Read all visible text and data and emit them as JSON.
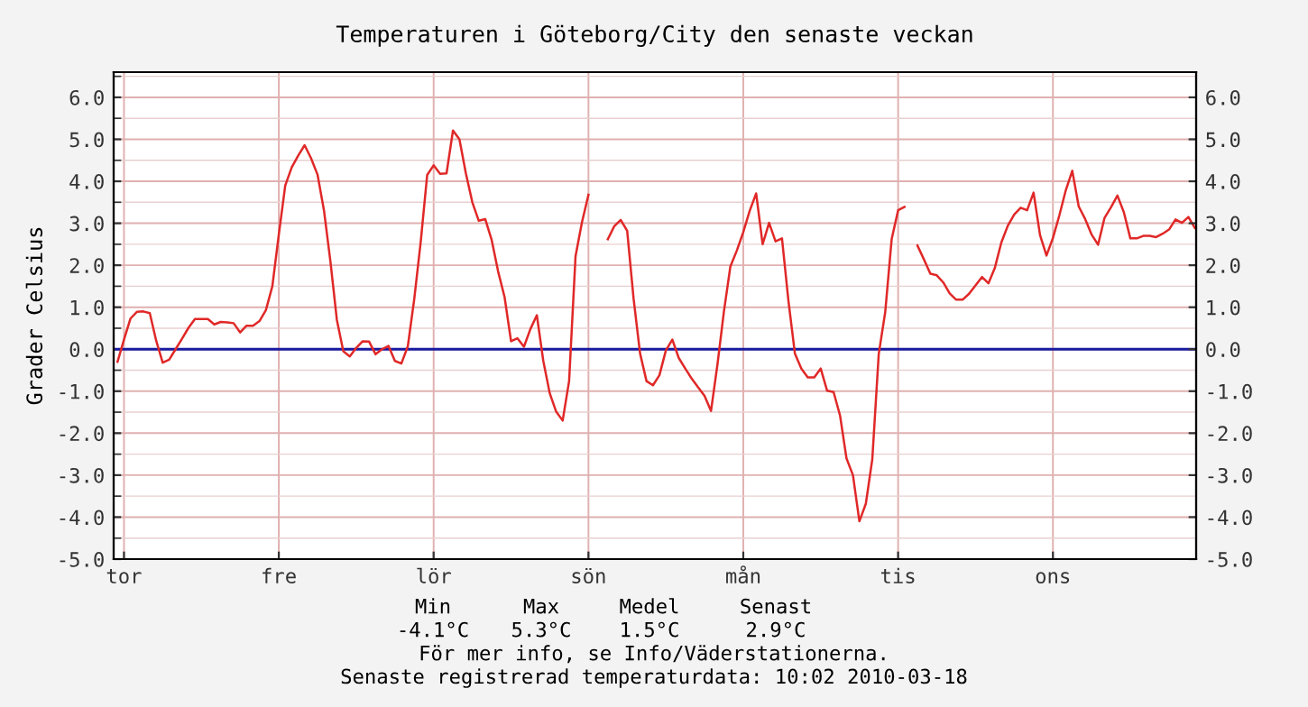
{
  "chart_data": {
    "type": "line",
    "title": "Temperaturen i Göteborg/City den senaste veckan",
    "ylabel": "Grader Celsius",
    "categories": [
      null,
      "tor",
      null,
      null,
      null,
      null,
      null,
      null,
      null,
      null,
      null,
      null,
      null,
      null,
      null,
      null,
      null,
      null,
      null,
      null,
      null,
      null,
      null,
      null,
      null,
      "fre",
      null,
      null,
      null,
      null,
      null,
      null,
      null,
      null,
      null,
      null,
      null,
      null,
      null,
      null,
      null,
      null,
      null,
      null,
      null,
      null,
      null,
      null,
      null,
      "lör",
      null,
      null,
      null,
      null,
      null,
      null,
      null,
      null,
      null,
      null,
      null,
      null,
      null,
      null,
      null,
      null,
      null,
      null,
      null,
      null,
      null,
      null,
      null,
      "sön",
      null,
      null,
      null,
      null,
      null,
      null,
      null,
      null,
      null,
      null,
      null,
      null,
      null,
      null,
      null,
      null,
      null,
      null,
      null,
      null,
      null,
      null,
      null,
      "mån",
      null,
      null,
      null,
      null,
      null,
      null,
      null,
      null,
      null,
      null,
      null,
      null,
      null,
      null,
      null,
      null,
      null,
      null,
      null,
      null,
      null,
      null,
      null,
      "tis",
      null,
      null,
      null,
      null,
      null,
      null,
      null,
      null,
      null,
      null,
      null,
      null,
      null,
      null,
      null,
      null,
      null,
      null,
      null,
      null,
      null,
      null,
      null,
      "ons",
      null,
      null,
      null,
      null,
      null,
      null,
      null,
      null,
      null,
      null,
      null,
      null,
      null,
      null,
      null,
      null,
      null,
      null,
      null,
      null,
      null,
      null
    ],
    "series": [
      {
        "color": "#e02828",
        "values": [
          -0.3,
          0.23,
          0.73,
          0.89,
          0.9,
          0.86,
          0.2,
          -0.32,
          -0.25,
          0.0,
          0.25,
          0.51,
          0.72,
          0.72,
          0.72,
          0.59,
          0.65,
          0.64,
          0.62,
          0.4,
          0.56,
          0.56,
          0.67,
          0.93,
          1.5,
          2.73,
          3.9,
          4.33,
          4.61,
          4.86,
          4.55,
          4.16,
          3.31,
          2.09,
          0.7,
          -0.05,
          -0.17,
          0.03,
          0.19,
          0.18,
          -0.12,
          0.0,
          0.08,
          -0.28,
          -0.34,
          0.07,
          1.2,
          2.56,
          4.15,
          4.38,
          4.18,
          4.19,
          5.21,
          5.0,
          4.19,
          3.5,
          3.06,
          3.1,
          2.6,
          1.85,
          1.24,
          0.19,
          0.26,
          0.06,
          0.48,
          0.81,
          -0.28,
          -1.05,
          -1.49,
          -1.7,
          -0.76,
          2.22,
          3.03,
          3.68,
          null,
          null,
          2.62,
          2.93,
          3.08,
          2.82,
          1.2,
          -0.1,
          -0.76,
          -0.86,
          -0.62,
          -0.03,
          0.23,
          -0.21,
          -0.46,
          -0.7,
          -0.91,
          -1.11,
          -1.47,
          -0.36,
          0.9,
          1.97,
          2.35,
          2.79,
          3.3,
          3.71,
          2.5,
          3.01,
          2.57,
          2.64,
          1.15,
          -0.1,
          -0.46,
          -0.67,
          -0.67,
          -0.46,
          -0.99,
          -1.02,
          -1.58,
          -2.6,
          -3.0,
          -4.1,
          -3.68,
          -2.62,
          -0.11,
          0.88,
          2.62,
          3.31,
          3.39,
          null,
          2.47,
          2.14,
          1.8,
          1.76,
          1.59,
          1.33,
          1.18,
          1.18,
          1.32,
          1.52,
          1.72,
          1.57,
          1.94,
          2.54,
          2.94,
          3.21,
          3.37,
          3.31,
          3.73,
          2.72,
          2.23,
          2.65,
          3.19,
          3.79,
          4.25,
          3.4,
          3.1,
          2.73,
          2.49,
          3.13,
          3.38,
          3.66,
          3.26,
          2.64,
          2.64,
          2.7,
          2.7,
          2.67,
          2.75,
          2.85,
          3.09,
          3.01,
          3.15,
          2.89
        ]
      }
    ],
    "ylim": [
      -5,
      6.6
    ],
    "yticks": [
      {
        "value": -5,
        "label": "-5.0"
      },
      {
        "value": -4,
        "label": "-4.0"
      },
      {
        "value": -3,
        "label": "-3.0"
      },
      {
        "value": -2,
        "label": "-2.0"
      },
      {
        "value": -1,
        "label": "-1.0"
      },
      {
        "value": 0,
        "label": "0.0"
      },
      {
        "value": 1,
        "label": "1.0"
      },
      {
        "value": 2,
        "label": "2.0"
      },
      {
        "value": 3,
        "label": "3.0"
      },
      {
        "value": 4,
        "label": "4.0"
      },
      {
        "value": 5,
        "label": "5.0"
      },
      {
        "value": 6,
        "label": "6.0"
      }
    ],
    "y2lim": [
      -5,
      6.6
    ],
    "y2ticks": [
      {
        "value": -5,
        "label": "-5.0"
      },
      {
        "value": -4,
        "label": "-4.0"
      },
      {
        "value": -3,
        "label": "-3.0"
      },
      {
        "value": -2,
        "label": "-2.0"
      },
      {
        "value": -1,
        "label": "-1.0"
      },
      {
        "value": 0,
        "label": "0.0"
      },
      {
        "value": 1,
        "label": "1.0"
      },
      {
        "value": 2,
        "label": "2.0"
      },
      {
        "value": 3,
        "label": "3.0"
      },
      {
        "value": 4,
        "label": "4.0"
      },
      {
        "value": 5,
        "label": "5.0"
      },
      {
        "value": 6,
        "label": "6.0"
      }
    ],
    "ref_lines": [
      {
        "axis": "y",
        "value": 0,
        "color": "#1a1aa0"
      }
    ],
    "grid": true,
    "annotations": [
      "Min",
      "Max",
      "Medel",
      "Senast",
      "-4.1°C",
      "5.3°C",
      "1.5°C",
      "2.9°C",
      "För mer info, se Info/Väderstationerna.",
      "Senaste registrerad temperaturdata: 10:02 2010-03-18"
    ]
  }
}
